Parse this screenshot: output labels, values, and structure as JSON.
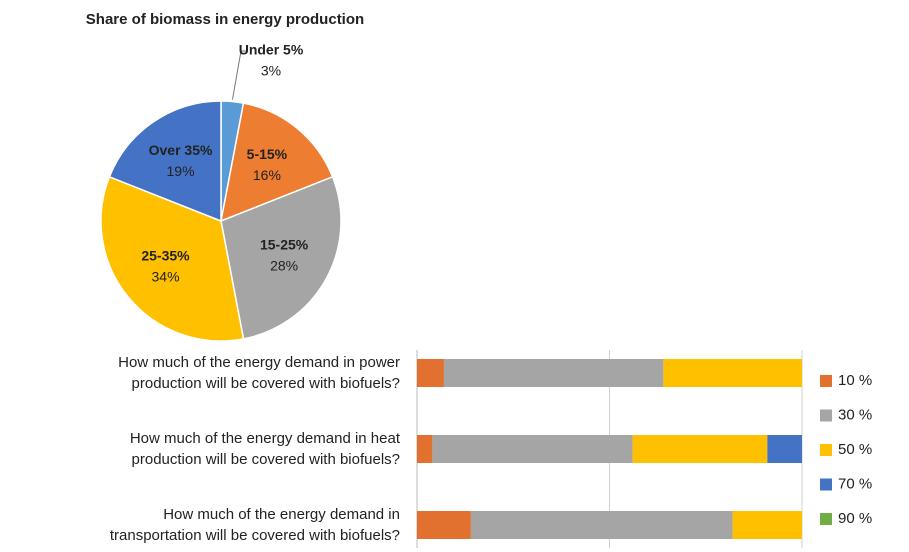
{
  "chart_data": [
    {
      "type": "pie",
      "title": "Share of biomass in energy production",
      "categories": [
        "Under 5%",
        "5-15%",
        "15-25%",
        "25-35%",
        "Over 35%"
      ],
      "values": [
        3,
        16,
        28,
        34,
        19
      ],
      "value_labels": [
        "3%",
        "16%",
        "28%",
        "34%",
        "19%"
      ],
      "colors": [
        "#5b9bd5",
        "#ed7d31",
        "#a5a5a5",
        "#ffc000",
        "#4472c4"
      ]
    },
    {
      "type": "bar",
      "orientation": "horizontal",
      "stacked": true,
      "categories": [
        "How much of the energy demand in power production will be covered with biofuels?",
        "How much of the energy demand in heat production will be covered with biofuels?",
        "How much of the energy demand in transportation will be covered with biofuels?"
      ],
      "series": [
        {
          "name": "10 %",
          "color": "#e2702e",
          "values": [
            7,
            4,
            14
          ]
        },
        {
          "name": "30 %",
          "color": "#a5a5a5",
          "values": [
            57,
            52,
            68
          ]
        },
        {
          "name": "50 %",
          "color": "#ffc000",
          "values": [
            36,
            35,
            18
          ]
        },
        {
          "name": "70 %",
          "color": "#4472c4",
          "values": [
            0,
            9,
            0
          ]
        },
        {
          "name": "90 %",
          "color": "#70ad47",
          "values": [
            0,
            0,
            0
          ]
        }
      ],
      "xlim": [
        0,
        100
      ],
      "xticks": [
        0,
        50,
        100
      ],
      "grid": true,
      "legend": "right"
    }
  ]
}
